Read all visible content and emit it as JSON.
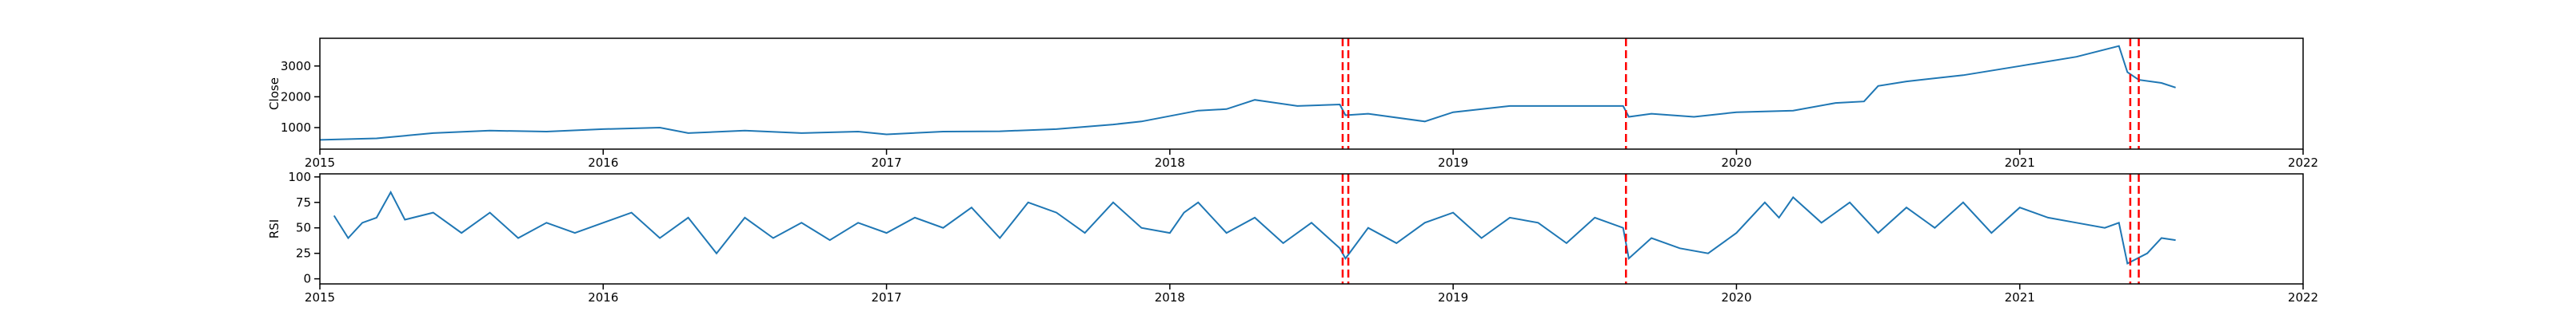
{
  "chart_data": [
    {
      "type": "line",
      "ylabel": "Close",
      "xlim": [
        2015.0,
        2022.0
      ],
      "ylim": [
        300,
        3900
      ],
      "x_ticks": [
        2015,
        2016,
        2017,
        2018,
        2019,
        2020,
        2021,
        2022
      ],
      "x_tick_labels": [
        "2015",
        "2016",
        "2017",
        "2018",
        "2019",
        "2020",
        "2021",
        "2022"
      ],
      "y_ticks": [
        1000,
        2000,
        3000
      ],
      "y_tick_labels": [
        "1000",
        "2000",
        "3000"
      ],
      "series": [
        {
          "color": "#1f77b4",
          "x": [
            2015.0,
            2015.2,
            2015.4,
            2015.6,
            2015.8,
            2016.0,
            2016.2,
            2016.3,
            2016.5,
            2016.7,
            2016.9,
            2017.0,
            2017.2,
            2017.4,
            2017.6,
            2017.8,
            2017.9,
            2018.1,
            2018.2,
            2018.3,
            2018.45,
            2018.6,
            2018.62,
            2018.7,
            2018.9,
            2019.0,
            2019.2,
            2019.4,
            2019.6,
            2019.62,
            2019.7,
            2019.85,
            2020.0,
            2020.2,
            2020.35,
            2020.45,
            2020.5,
            2020.6,
            2020.8,
            2021.0,
            2021.2,
            2021.35,
            2021.38,
            2021.42,
            2021.5,
            2021.55
          ],
          "y": [
            600,
            650,
            820,
            900,
            870,
            950,
            1000,
            820,
            900,
            820,
            870,
            780,
            870,
            880,
            950,
            1100,
            1200,
            1550,
            1600,
            1900,
            1700,
            1750,
            1400,
            1450,
            1200,
            1500,
            1700,
            1700,
            1700,
            1350,
            1450,
            1350,
            1500,
            1550,
            1800,
            1850,
            2350,
            2500,
            2700,
            3000,
            3300,
            3650,
            2800,
            2550,
            2450,
            2300
          ]
        }
      ]
    },
    {
      "type": "line",
      "ylabel": "RSI",
      "xlim": [
        2015.0,
        2022.0
      ],
      "ylim": [
        -5,
        103
      ],
      "x_ticks": [
        2015,
        2016,
        2017,
        2018,
        2019,
        2020,
        2021,
        2022
      ],
      "x_tick_labels": [
        "2015",
        "2016",
        "2017",
        "2018",
        "2019",
        "2020",
        "2021",
        "2022"
      ],
      "y_ticks": [
        0,
        25,
        50,
        75,
        100
      ],
      "y_tick_labels": [
        "0",
        "25",
        "50",
        "75",
        "100"
      ],
      "series": [
        {
          "color": "#1f77b4",
          "x": [
            2015.05,
            2015.1,
            2015.15,
            2015.2,
            2015.25,
            2015.3,
            2015.4,
            2015.5,
            2015.6,
            2015.7,
            2015.8,
            2015.9,
            2016.0,
            2016.1,
            2016.2,
            2016.3,
            2016.4,
            2016.5,
            2016.6,
            2016.7,
            2016.8,
            2016.9,
            2017.0,
            2017.1,
            2017.2,
            2017.3,
            2017.4,
            2017.5,
            2017.6,
            2017.7,
            2017.8,
            2017.9,
            2018.0,
            2018.05,
            2018.1,
            2018.2,
            2018.3,
            2018.4,
            2018.5,
            2018.6,
            2018.62,
            2018.7,
            2018.8,
            2018.9,
            2019.0,
            2019.1,
            2019.2,
            2019.3,
            2019.4,
            2019.5,
            2019.6,
            2019.62,
            2019.7,
            2019.8,
            2019.9,
            2020.0,
            2020.1,
            2020.15,
            2020.2,
            2020.3,
            2020.4,
            2020.5,
            2020.6,
            2020.7,
            2020.8,
            2020.9,
            2021.0,
            2021.1,
            2021.2,
            2021.3,
            2021.35,
            2021.38,
            2021.45,
            2021.5,
            2021.55
          ],
          "y": [
            62,
            40,
            55,
            60,
            85,
            58,
            65,
            45,
            65,
            40,
            55,
            45,
            55,
            65,
            40,
            60,
            25,
            60,
            40,
            55,
            38,
            55,
            45,
            60,
            50,
            70,
            40,
            75,
            65,
            45,
            75,
            50,
            45,
            65,
            75,
            45,
            60,
            35,
            55,
            30,
            20,
            50,
            35,
            55,
            65,
            40,
            60,
            55,
            35,
            60,
            50,
            20,
            40,
            30,
            25,
            45,
            75,
            60,
            80,
            55,
            75,
            45,
            70,
            50,
            75,
            45,
            70,
            60,
            55,
            50,
            55,
            15,
            25,
            40,
            38
          ]
        }
      ]
    }
  ],
  "vlines": {
    "color": "#ff0000",
    "x": [
      2018.61,
      2018.63,
      2019.61,
      2021.39,
      2021.42
    ]
  }
}
